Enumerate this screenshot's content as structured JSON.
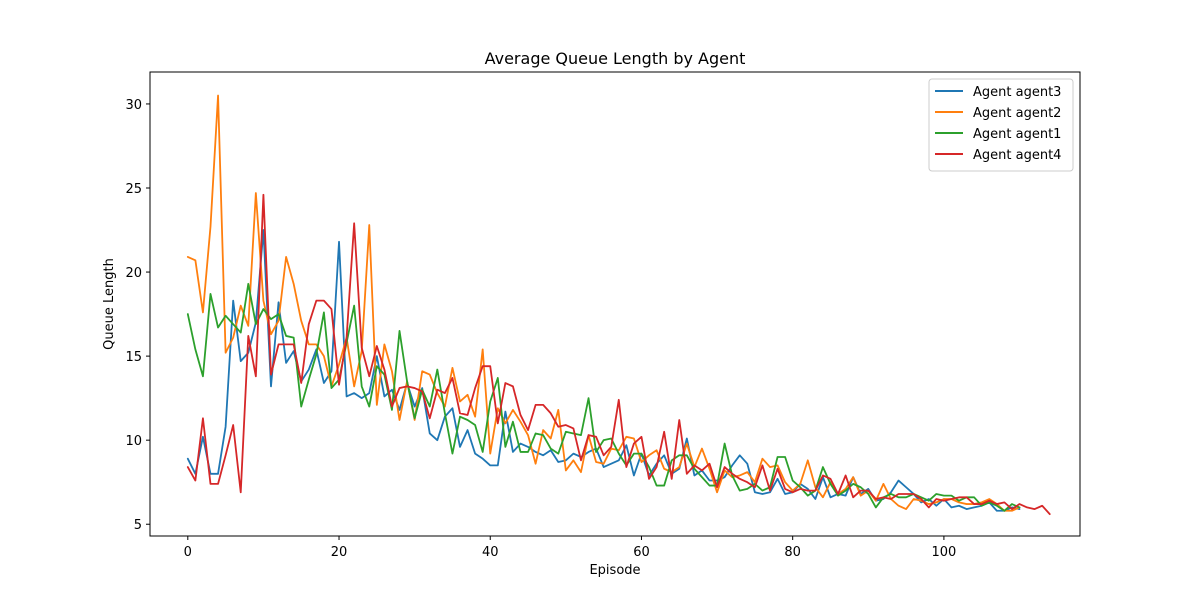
{
  "chart_data": {
    "type": "line",
    "title": "Average Queue Length by Agent",
    "xlabel": "Episode",
    "ylabel": "Queue Length",
    "xlim": [
      -5,
      118
    ],
    "ylim": [
      4.3,
      31.9
    ],
    "xticks": [
      0,
      20,
      40,
      60,
      80,
      100
    ],
    "yticks": [
      5,
      10,
      15,
      20,
      25,
      30
    ],
    "grid": false,
    "legend_position": "top-right",
    "series": [
      {
        "name": "Agent agent3",
        "color": "#1f77b4",
        "values": [
          8.9,
          8.0,
          10.2,
          8.0,
          8.0,
          10.8,
          18.3,
          14.7,
          15.2,
          17.0,
          22.5,
          13.2,
          18.2,
          14.6,
          15.3,
          13.5,
          14.2,
          15.4,
          13.4,
          14.1,
          21.8,
          12.6,
          12.8,
          12.5,
          12.8,
          15.0,
          12.6,
          13.0,
          11.8,
          13.4,
          12.0,
          13.1,
          10.4,
          10.0,
          11.4,
          11.9,
          9.6,
          10.6,
          9.2,
          8.9,
          8.5,
          8.5,
          11.7,
          9.3,
          9.8,
          9.6,
          9.3,
          9.1,
          9.4,
          8.7,
          8.8,
          9.2,
          9.0,
          9.3,
          9.5,
          8.4,
          8.6,
          8.8,
          9.7,
          7.9,
          9.2,
          7.9,
          8.6,
          9.1,
          8.0,
          8.3,
          10.1,
          7.9,
          8.2,
          7.6,
          7.6,
          7.8,
          8.5,
          9.1,
          8.6,
          6.9,
          6.8,
          6.9,
          7.7,
          6.8,
          6.9,
          7.4,
          7.1,
          6.5,
          7.8,
          6.6,
          6.8,
          6.7,
          7.8,
          6.8,
          7.1,
          6.4,
          6.5,
          6.9,
          7.6,
          7.2,
          6.8,
          6.3,
          6.5,
          6.1,
          6.5,
          6.0,
          6.1,
          5.9,
          6.0,
          6.1,
          6.3,
          5.8,
          5.8,
          6.0,
          5.9
        ],
        "data_labels": []
      },
      {
        "name": "Agent agent2",
        "color": "#ff7f0e",
        "values": [
          20.9,
          20.7,
          17.6,
          22.7,
          30.5,
          15.2,
          16.1,
          18.0,
          16.8,
          24.7,
          18.3,
          16.3,
          17.1,
          20.9,
          19.3,
          17.1,
          15.7,
          15.7,
          15.0,
          13.2,
          14.5,
          16.1,
          13.2,
          15.3,
          22.8,
          12.1,
          15.7,
          14.1,
          11.2,
          13.5,
          11.2,
          14.1,
          13.9,
          12.8,
          12.0,
          14.3,
          12.3,
          12.7,
          11.4,
          15.4,
          9.2,
          11.9,
          11.0,
          11.8,
          11.1,
          10.3,
          8.6,
          10.6,
          10.1,
          11.8,
          8.2,
          8.8,
          8.1,
          10.3,
          8.7,
          8.6,
          9.5,
          9.4,
          10.2,
          10.1,
          8.7,
          9.1,
          9.4,
          8.3,
          8.1,
          8.4,
          9.8,
          8.4,
          9.5,
          8.3,
          6.9,
          8.2,
          7.8,
          7.9,
          8.1,
          7.5,
          8.9,
          8.4,
          8.5,
          7.5,
          7.0,
          7.4,
          8.8,
          7.2,
          6.6,
          7.5,
          6.8,
          7.1,
          7.8,
          6.7,
          7.0,
          6.4,
          7.4,
          6.5,
          6.1,
          5.9,
          6.5,
          6.4,
          6.2,
          6.3,
          6.5,
          6.5,
          6.3,
          6.2,
          6.2,
          6.3,
          6.5,
          6.2,
          5.8,
          5.8,
          6.0
        ]
      },
      {
        "name": "Agent agent1",
        "color": "#2ca02c",
        "values": [
          17.5,
          15.4,
          13.8,
          18.7,
          16.7,
          17.4,
          16.9,
          16.4,
          19.3,
          16.9,
          17.8,
          17.2,
          17.5,
          16.2,
          16.1,
          12.0,
          13.6,
          15.1,
          17.6,
          13.1,
          13.6,
          15.8,
          18.0,
          13.2,
          12.0,
          14.4,
          13.9,
          11.8,
          16.5,
          13.5,
          11.3,
          13.0,
          12.0,
          14.2,
          11.6,
          9.2,
          11.4,
          11.2,
          10.9,
          9.3,
          12.3,
          13.7,
          9.6,
          11.1,
          9.3,
          9.3,
          10.4,
          10.3,
          9.5,
          9.2,
          10.5,
          10.4,
          10.3,
          12.5,
          9.3,
          10.0,
          10.1,
          9.2,
          8.5,
          9.2,
          9.2,
          8.4,
          7.3,
          7.3,
          8.8,
          9.1,
          9.1,
          8.3,
          7.8,
          7.3,
          7.3,
          9.8,
          7.9,
          7.0,
          7.1,
          7.4,
          7.0,
          7.2,
          9.0,
          9.0,
          7.6,
          7.2,
          6.7,
          7.0,
          8.4,
          7.4,
          6.7,
          7.0,
          7.4,
          7.2,
          6.8,
          6.0,
          6.6,
          6.8,
          6.6,
          6.6,
          6.8,
          6.6,
          6.4,
          6.8,
          6.7,
          6.7,
          6.4,
          6.6,
          6.6,
          6.1,
          6.3,
          6.1,
          5.8,
          6.2,
          6.0
        ]
      },
      {
        "name": "Agent agent4",
        "color": "#d62728",
        "values": [
          8.4,
          7.6,
          11.3,
          7.4,
          7.4,
          9.1,
          10.9,
          6.9,
          16.2,
          13.8,
          24.6,
          13.9,
          15.7,
          15.7,
          15.7,
          13.4,
          16.9,
          18.3,
          18.3,
          17.8,
          13.3,
          16.1,
          22.9,
          15.5,
          13.8,
          15.6,
          14.2,
          12.0,
          13.1,
          13.2,
          13.1,
          12.9,
          11.3,
          13.0,
          12.8,
          13.7,
          11.6,
          11.5,
          13.1,
          14.4,
          14.4,
          11.0,
          13.4,
          13.2,
          11.5,
          10.6,
          12.1,
          12.1,
          11.6,
          10.8,
          10.9,
          10.7,
          8.8,
          10.3,
          10.2,
          9.1,
          9.6,
          12.4,
          8.4,
          9.8,
          10.2,
          7.7,
          8.4,
          10.5,
          7.7,
          11.2,
          8.0,
          8.5,
          8.2,
          8.6,
          7.2,
          8.4,
          8.0,
          7.7,
          7.5,
          7.2,
          8.5,
          7.0,
          8.3,
          7.1,
          6.9,
          7.1,
          7.0,
          7.0,
          7.9,
          7.7,
          6.8,
          7.9,
          6.6,
          7.0,
          7.0,
          6.5,
          6.6,
          6.5,
          6.8,
          6.8,
          6.8,
          6.5,
          6.0,
          6.5,
          6.4,
          6.5,
          6.6,
          6.6,
          6.2,
          6.2,
          6.4,
          6.2,
          6.3,
          5.9,
          6.2,
          6.0,
          5.9,
          6.1,
          5.6
        ]
      }
    ]
  }
}
